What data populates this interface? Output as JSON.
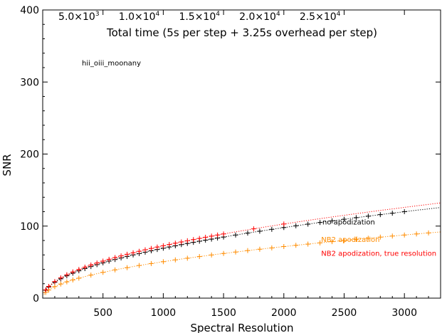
{
  "chart_data": {
    "type": "scatter",
    "title": "",
    "xlabel": "Spectral Resolution",
    "ylabel": "SNR",
    "xlim": [
      0,
      3300
    ],
    "ylim": [
      0,
      400
    ],
    "x_ticks": [
      500,
      1000,
      1500,
      2000,
      2500,
      3000
    ],
    "y_ticks": [
      0,
      100,
      200,
      300,
      400
    ],
    "top_axis": {
      "label": "Total time (5s per step + 3.25s overhead per step)",
      "ticks": [
        {
          "x": 300,
          "label": "5.0×10",
          "exp": "3"
        },
        {
          "x": 800,
          "label": "1.0×10",
          "exp": "4"
        },
        {
          "x": 1300,
          "label": "1.5×10",
          "exp": "4"
        },
        {
          "x": 1800,
          "label": "2.0×10",
          "exp": "4"
        },
        {
          "x": 2300,
          "label": "2.5×10",
          "exp": "4"
        }
      ]
    },
    "annotation": "hii_oiii_moonany",
    "grid": false,
    "series": [
      {
        "name": "no apodization",
        "color": "#000000",
        "k": 2.19,
        "x": [
          25,
          50,
          100,
          150,
          200,
          250,
          300,
          350,
          400,
          450,
          500,
          550,
          600,
          650,
          700,
          750,
          800,
          850,
          900,
          950,
          1000,
          1050,
          1100,
          1150,
          1200,
          1250,
          1300,
          1350,
          1400,
          1450,
          1500,
          1600,
          1700,
          1800,
          1900,
          2000,
          2100,
          2200,
          2300,
          2400,
          2500,
          2600,
          2700,
          2800,
          2900,
          3000
        ],
        "y": [
          11,
          15.5,
          21.9,
          26.8,
          31,
          34.6,
          37.9,
          41,
          43.8,
          46.5,
          49,
          51.4,
          53.6,
          55.8,
          57.9,
          60,
          61.9,
          63.8,
          65.7,
          67.5,
          69.3,
          71,
          72.6,
          74.3,
          75.9,
          77.4,
          79,
          80.5,
          81.9,
          83.4,
          84.8,
          87.6,
          90.3,
          92.9,
          95.5,
          98,
          100.4,
          102.7,
          105,
          107.3,
          109.5,
          111.7,
          113.8,
          115.9,
          117.9,
          120
        ]
      },
      {
        "name": "NB2 apodization",
        "color": "#ff8c00",
        "k": 1.6,
        "x": [
          25,
          50,
          100,
          150,
          200,
          250,
          300,
          400,
          500,
          600,
          700,
          800,
          900,
          1000,
          1100,
          1200,
          1300,
          1400,
          1500,
          1600,
          1700,
          1800,
          1900,
          2000,
          2100,
          2200,
          2300,
          2400,
          2500,
          2600,
          2700,
          2800,
          2900,
          3000,
          3100,
          3200
        ],
        "y": [
          8,
          11.3,
          16,
          19.6,
          22.6,
          25.3,
          27.7,
          32,
          35.8,
          39.2,
          42.3,
          45.3,
          48,
          50.6,
          53.1,
          55.4,
          57.7,
          59.9,
          62,
          64,
          66,
          67.9,
          69.7,
          71.6,
          73.3,
          75,
          76.7,
          78.4,
          80,
          81.6,
          83.1,
          84.7,
          86.2,
          87.6,
          89.1,
          90.5
        ]
      },
      {
        "name": "NB2 apodization, true resolution",
        "color": "#ff0000",
        "k": 2.3,
        "x": [
          25,
          50,
          100,
          150,
          200,
          250,
          300,
          350,
          400,
          450,
          500,
          550,
          600,
          650,
          700,
          750,
          800,
          850,
          900,
          950,
          1000,
          1050,
          1100,
          1150,
          1200,
          1250,
          1300,
          1350,
          1400,
          1450,
          1500,
          1750,
          2000
        ],
        "y": [
          11.5,
          16.3,
          23,
          28.2,
          32.5,
          36.4,
          39.8,
          43,
          46,
          48.8,
          51.4,
          53.9,
          56.3,
          58.6,
          60.9,
          63,
          65,
          67.1,
          69,
          70.9,
          72.7,
          74.5,
          76.3,
          78,
          79.7,
          81.3,
          82.9,
          84.5,
          86.1,
          87.6,
          89.1,
          96.2,
          102.9
        ]
      }
    ],
    "labels": [
      {
        "text": "no apodization",
        "x": 2320,
        "y": 102,
        "color": "#000000"
      },
      {
        "text": "NB2 apodization",
        "x": 2310,
        "y": 78,
        "color": "#ff8c00"
      },
      {
        "text": "NB2 apodization, true resolution",
        "x": 2310,
        "y": 59,
        "color": "#ff0000"
      }
    ]
  }
}
